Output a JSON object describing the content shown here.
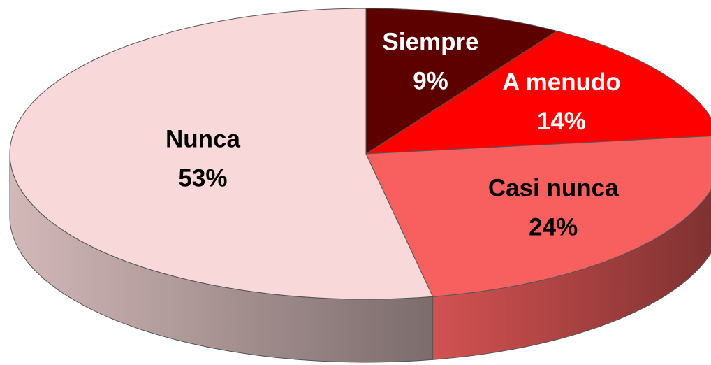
{
  "chart_data": {
    "type": "pie",
    "categories": [
      "Siempre",
      "A menudo",
      "Casi nunca",
      "Nunca"
    ],
    "values": [
      9,
      14,
      24,
      53
    ],
    "value_labels": [
      "9%",
      "14%",
      "24%",
      "53%"
    ],
    "colors": [
      "#5c0000",
      "#ff0000",
      "#f86060",
      "#f8d8d8"
    ]
  }
}
